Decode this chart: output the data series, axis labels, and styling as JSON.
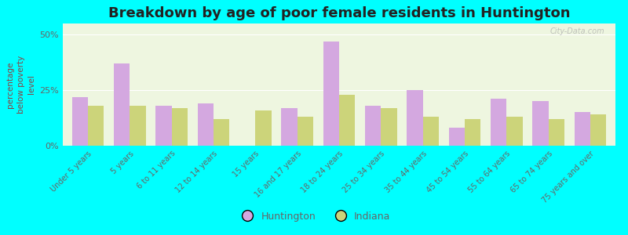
{
  "title": "Breakdown by age of poor female residents in Huntington",
  "ylabel": "percentage\nbelow poverty\nlevel",
  "categories": [
    "Under 5 years",
    "5 years",
    "6 to 11 years",
    "12 to 14 years",
    "15 years",
    "16 and 17 years",
    "18 to 24 years",
    "25 to 34 years",
    "35 to 44 years",
    "45 to 54 years",
    "55 to 64 years",
    "65 to 74 years",
    "75 years and over"
  ],
  "huntington_values": [
    22,
    37,
    18,
    19,
    0,
    17,
    47,
    18,
    25,
    8,
    21,
    20,
    15
  ],
  "indiana_values": [
    18,
    18,
    17,
    12,
    16,
    13,
    23,
    17,
    13,
    12,
    13,
    12,
    14
  ],
  "huntington_color": "#d4a8e0",
  "indiana_color": "#ccd47a",
  "background_color": "#00ffff",
  "plot_bg_color": "#eef6e0",
  "ylim": [
    0,
    55
  ],
  "yticks": [
    0,
    25,
    50
  ],
  "ytick_labels": [
    "0%",
    "25%",
    "50%"
  ],
  "bar_width": 0.38,
  "title_fontsize": 13,
  "legend_labels": [
    "Huntington",
    "Indiana"
  ],
  "watermark": "City-Data.com",
  "label_color": "#666666",
  "ylabel_color": "#884444"
}
